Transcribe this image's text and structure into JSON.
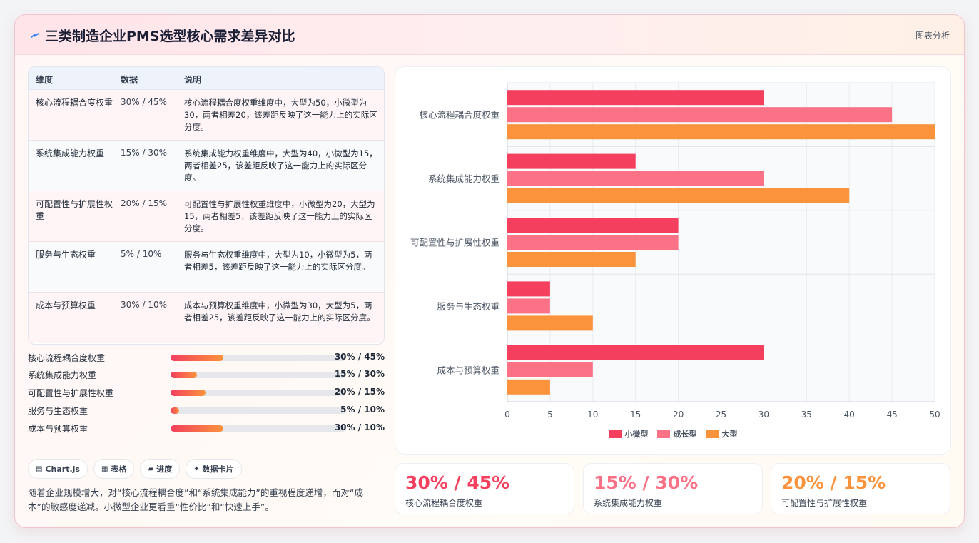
{
  "header": {
    "title": "三类制造企业PMS选型核心需求差异对比",
    "tag": "图表分析",
    "icon": "bolt-icon"
  },
  "table": {
    "headers": [
      "维度",
      "数据",
      "说明"
    ],
    "rows": [
      {
        "dim": "核心流程耦合度权重",
        "data": "30% / 45%",
        "desc": "核心流程耦合度权重维度中，大型为50，小微型为30，两者相差20，该差距反映了这一能力上的实际区分度。"
      },
      {
        "dim": "系统集成能力权重",
        "data": "15% / 30%",
        "desc": "系统集成能力权重维度中，大型为40，小微型为15，两者相差25，该差距反映了这一能力上的实际区分度。"
      },
      {
        "dim": "可配置性与扩展性权重",
        "data": "20% / 15%",
        "desc": "可配置性与扩展性权重维度中，小微型为20，大型为15，两者相差5，该差距反映了这一能力上的实际区分度。"
      },
      {
        "dim": "服务与生态权重",
        "data": "5% / 10%",
        "desc": "服务与生态权重维度中，大型为10，小微型为5，两者相差5，该差距反映了这一能力上的实际区分度。"
      },
      {
        "dim": "成本与预算权重",
        "data": "30% / 10%",
        "desc": "成本与预算权重维度中，小微型为30，大型为5，两者相差25，该差距反映了这一能力上的实际区分度。"
      }
    ]
  },
  "progress": [
    {
      "label": "核心流程耦合度权重",
      "value": "30% / 45%",
      "fill_percent": 30
    },
    {
      "label": "系统集成能力权重",
      "value": "15% / 30%",
      "fill_percent": 15
    },
    {
      "label": "可配置性与扩展性权重",
      "value": "20% / 15%",
      "fill_percent": 20
    },
    {
      "label": "服务与生态权重",
      "value": "5% / 10%",
      "fill_percent": 5
    },
    {
      "label": "成本与预算权重",
      "value": "30% / 10%",
      "fill_percent": 30
    }
  ],
  "chips": [
    {
      "icon": "▤",
      "label": "Chart.js"
    },
    {
      "icon": "▦",
      "label": "表格"
    },
    {
      "icon": "▰",
      "label": "进度"
    },
    {
      "icon": "✦",
      "label": "数据卡片"
    }
  ],
  "summary": "随着企业规模增大，对“核心流程耦合度”和“系统集成能力”的重视程度递增，而对“成本”的敏感度递减。小微型企业更看重“性价比”和“快速上手”。",
  "stats": [
    {
      "value": "30% / 45%",
      "label": "核心流程耦合度权重",
      "color": "#f43f5e"
    },
    {
      "value": "15% / 30%",
      "label": "系统集成能力权重",
      "color": "#fb7185"
    },
    {
      "value": "20% / 15%",
      "label": "可配置性与扩展性权重",
      "color": "#fb923c"
    }
  ],
  "chart_data": {
    "type": "bar",
    "orientation": "horizontal",
    "categories": [
      "核心流程耦合度权重",
      "系统集成能力权重",
      "可配置性与扩展性权重",
      "服务与生态权重",
      "成本与预算权重"
    ],
    "series": [
      {
        "name": "小微型",
        "values": [
          30,
          15,
          20,
          5,
          30
        ],
        "color": "#f43f5e"
      },
      {
        "name": "成长型",
        "values": [
          45,
          30,
          20,
          5,
          10
        ],
        "color": "#fb7185"
      },
      {
        "name": "大型",
        "values": [
          50,
          40,
          15,
          10,
          5
        ],
        "color": "#fb923c"
      }
    ],
    "xlim": [
      0,
      50
    ],
    "xticks": [
      0,
      5,
      10,
      15,
      20,
      25,
      30,
      35,
      40,
      45,
      50
    ],
    "grid": true,
    "legend": "bottom"
  }
}
